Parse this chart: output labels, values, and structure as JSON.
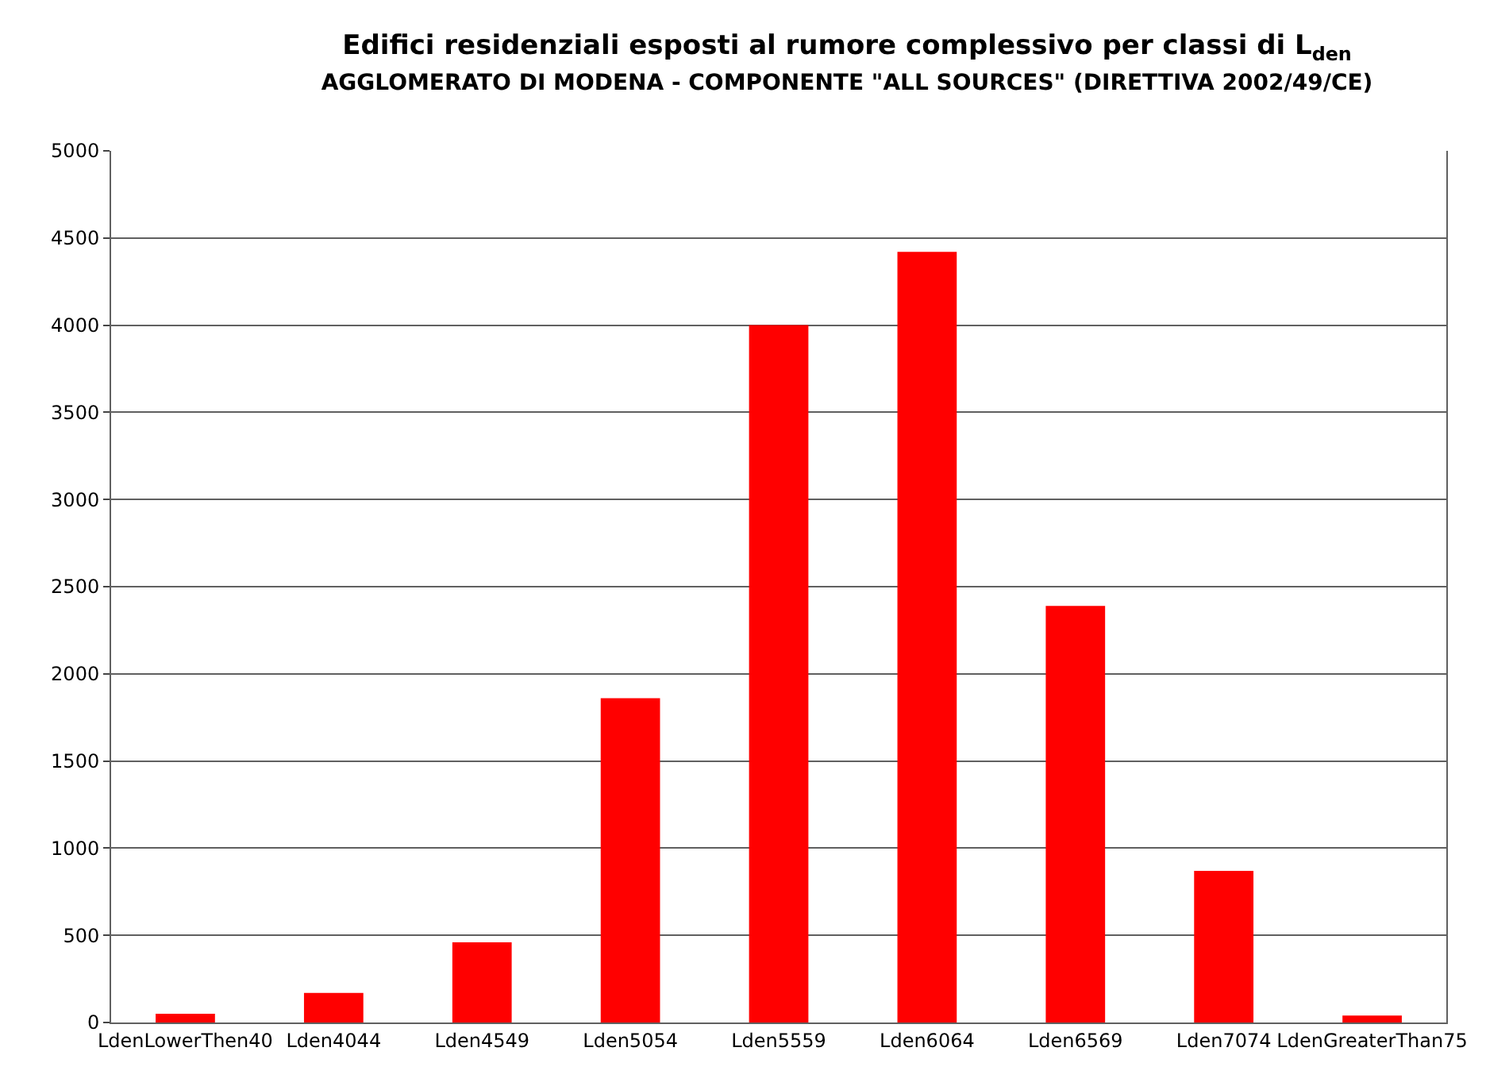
{
  "chart_data": {
    "type": "bar",
    "title": "Edifici residenziali esposti al rumore complessivo per classi di L$_{den}$",
    "subtitle": "AGGLOMERATO DI MODENA - COMPONENTE \"ALL SOURCES\" (DIRETTIVA 2002/49/CE)",
    "categories": [
      "LdenLowerThen40",
      "Lden4044",
      "Lden4549",
      "Lden5054",
      "Lden5559",
      "Lden6064",
      "Lden6569",
      "Lden7074",
      "LdenGreaterThan75"
    ],
    "values": [
      50,
      170,
      460,
      1860,
      4000,
      4420,
      2390,
      870,
      40
    ],
    "color": "#ff0000",
    "ylim": [
      0,
      5000
    ],
    "yticks": [
      0,
      500,
      1000,
      1500,
      2000,
      2500,
      3000,
      3500,
      4000,
      4500,
      5000
    ],
    "grid": "y"
  }
}
